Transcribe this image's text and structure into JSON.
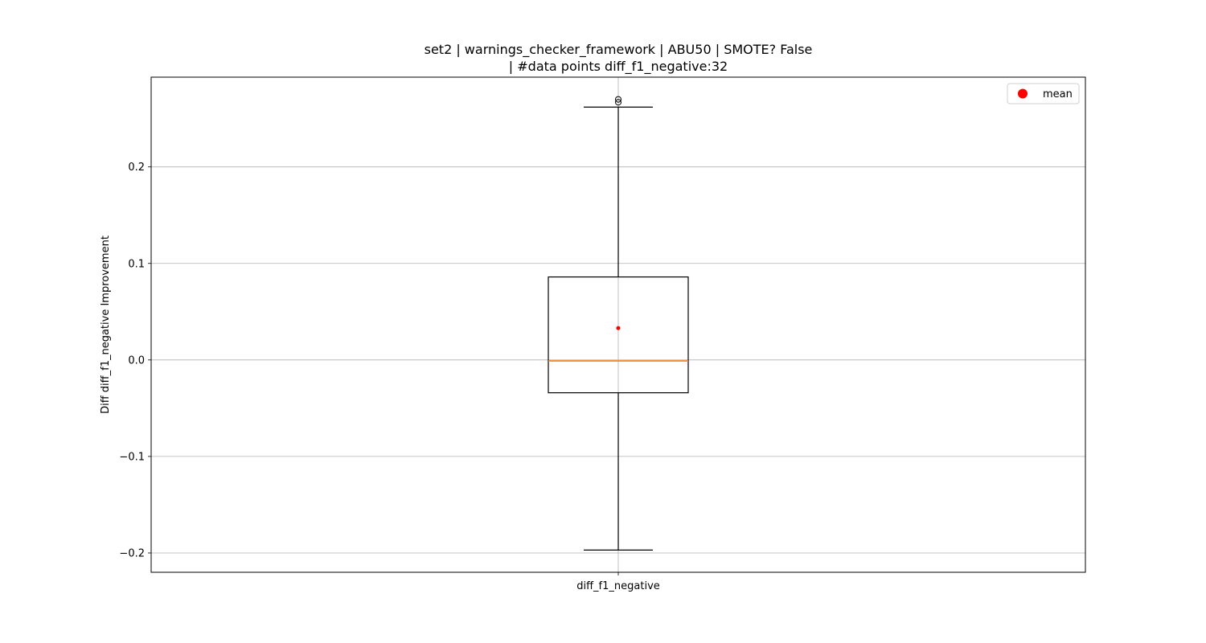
{
  "chart_data": {
    "type": "box",
    "title": "set2 | warnings_checker_framework | ABU50 | SMOTE? False",
    "subtitle": "| #data points diff_f1_negative:32",
    "xlabel": "",
    "ylabel": "Diff diff_f1_negative Improvement",
    "categories": [
      "diff_f1_negative"
    ],
    "ylim": [
      -0.22,
      0.293
    ],
    "yticks": [
      -0.2,
      -0.1,
      0.0,
      0.1,
      0.2
    ],
    "ytick_labels": [
      "−0.2",
      "−0.1",
      "0.0",
      "0.1",
      "0.2"
    ],
    "grid": true,
    "boxes": [
      {
        "category": "diff_f1_negative",
        "whisker_low": -0.197,
        "q1": -0.034,
        "median": -0.001,
        "q3": 0.086,
        "whisker_high": 0.262,
        "mean": 0.033,
        "outliers": [
          0.267,
          0.27
        ]
      }
    ],
    "legend": {
      "position": "top-right",
      "entries": [
        {
          "label": "mean",
          "color": "#ff0000"
        }
      ]
    },
    "colors": {
      "box": "#000000",
      "median": "#ff7f0e",
      "mean": "#ff0000",
      "grid": "#b0b0b0"
    }
  }
}
